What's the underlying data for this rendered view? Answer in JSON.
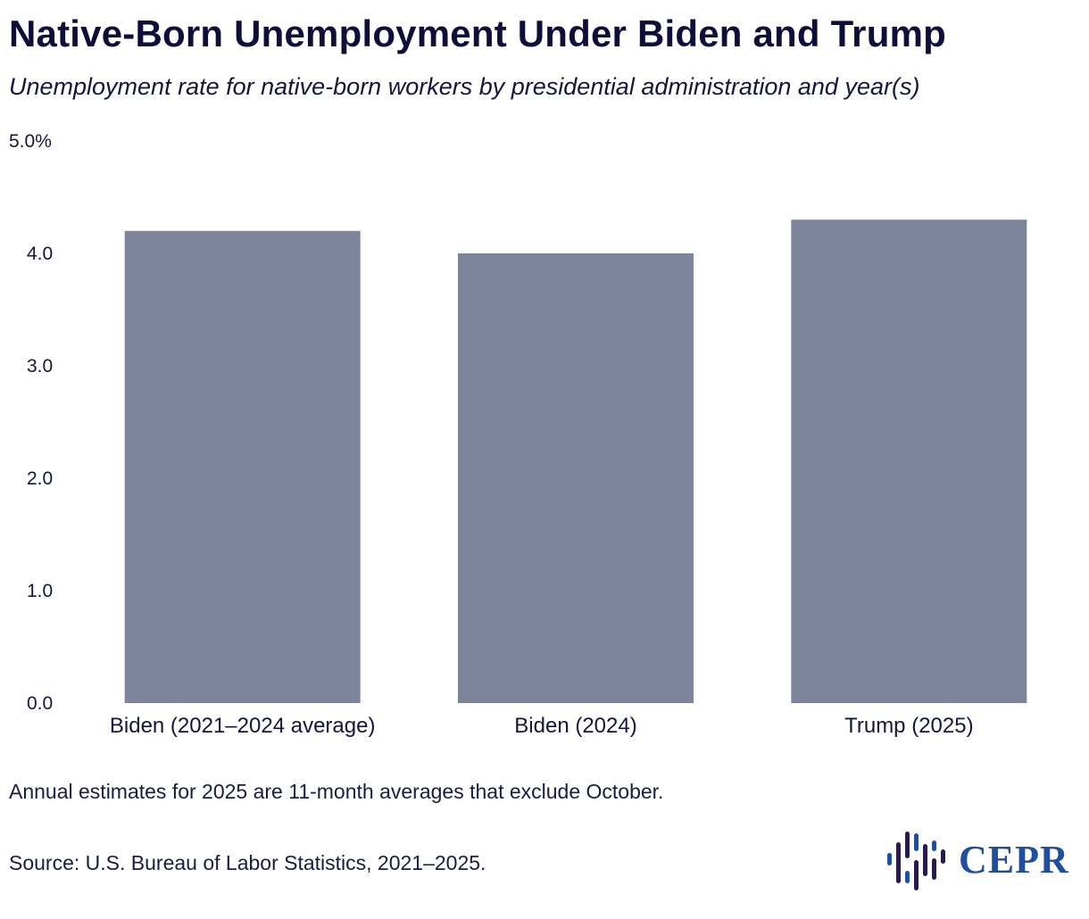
{
  "header": {
    "title": "Native-Born Unemployment Under Biden and Trump",
    "subtitle": "Unemployment rate for native-born workers by presidential administration and year(s)"
  },
  "chart_data": {
    "type": "bar",
    "categories": [
      "Biden (2021–2024 average)",
      "Biden (2024)",
      "Trump (2025)"
    ],
    "values": [
      4.2,
      4.0,
      4.3
    ],
    "ylim": [
      0,
      5
    ],
    "yticks": [
      0,
      1,
      2,
      3,
      4,
      5
    ],
    "ytick_labels": [
      "0.0",
      "1.0",
      "2.0",
      "3.0",
      "4.0",
      "5.0%"
    ],
    "grid": false,
    "legend": "none",
    "bar_color": "#7e849c"
  },
  "footer": {
    "note": "Annual estimates for 2025 are 11-month averages that exclude October.",
    "source": "Source: U.S. Bureau of Labor Statistics, 2021–2025.",
    "logo_text": "CEPR",
    "logo_color": "#1f4f9e",
    "logo_mark_color": "#2a1a4a"
  }
}
